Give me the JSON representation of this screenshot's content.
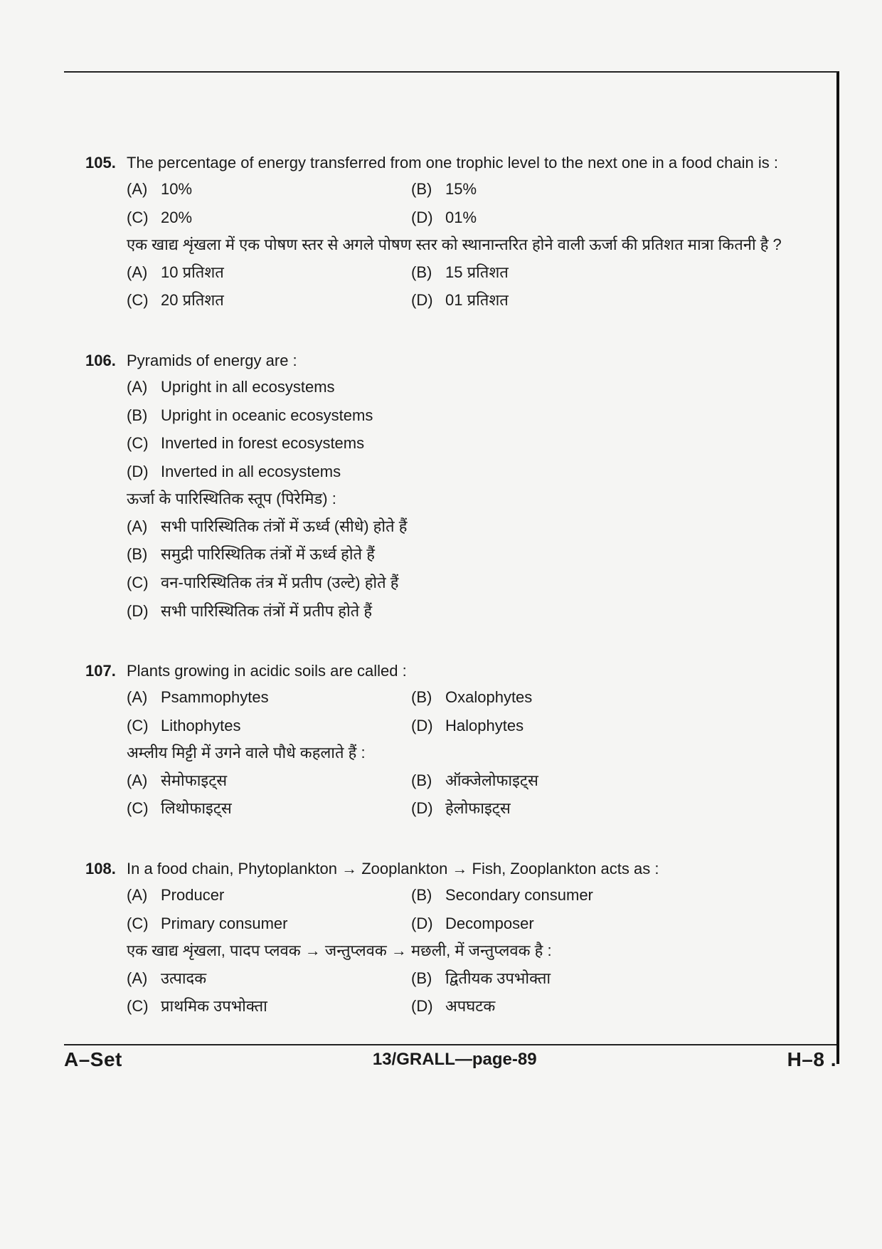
{
  "questions": [
    {
      "num": "105.",
      "text_en": "The percentage of energy transferred from one trophic level to the next one in a food chain is :",
      "opts_en": [
        {
          "l": "(A)",
          "t": "10%"
        },
        {
          "l": "(B)",
          "t": "15%"
        },
        {
          "l": "(C)",
          "t": "20%"
        },
        {
          "l": "(D)",
          "t": "01%"
        }
      ],
      "text_hi": "एक खाद्य शृंखला में एक पोषण स्तर से अगले पोषण स्तर को स्थानान्तरित होने वाली ऊर्जा की प्रतिशत मात्रा कितनी है ?",
      "opts_hi": [
        {
          "l": "(A)",
          "t": "10 प्रतिशत"
        },
        {
          "l": "(B)",
          "t": "15 प्रतिशत"
        },
        {
          "l": "(C)",
          "t": "20 प्रतिशत"
        },
        {
          "l": "(D)",
          "t": "01 प्रतिशत"
        }
      ]
    },
    {
      "num": "106.",
      "text_en": "Pyramids of energy are :",
      "opts_en": [
        {
          "l": "(A)",
          "t": "Upright in all ecosystems"
        },
        {
          "l": "(B)",
          "t": "Upright in oceanic ecosystems"
        },
        {
          "l": "(C)",
          "t": "Inverted in forest ecosystems"
        },
        {
          "l": "(D)",
          "t": "Inverted in all ecosystems"
        }
      ],
      "text_hi": "ऊर्जा के पारिस्थितिक स्तूप (पिरेमिड) :",
      "opts_hi": [
        {
          "l": "(A)",
          "t": "सभी पारिस्थितिक तंत्रों में ऊर्ध्व (सीधे) होते हैं"
        },
        {
          "l": "(B)",
          "t": "समुद्री पारिस्थितिक तंत्रों में ऊर्ध्व होते हैं"
        },
        {
          "l": "(C)",
          "t": "वन-पारिस्थितिक तंत्र में प्रतीप (उल्टे) होते हैं"
        },
        {
          "l": "(D)",
          "t": "सभी पारिस्थितिक तंत्रों में प्रतीप होते हैं"
        }
      ]
    },
    {
      "num": "107.",
      "text_en": "Plants growing in acidic soils are called :",
      "opts_en": [
        {
          "l": "(A)",
          "t": "Psammophytes"
        },
        {
          "l": "(B)",
          "t": "Oxalophytes"
        },
        {
          "l": "(C)",
          "t": "Lithophytes"
        },
        {
          "l": "(D)",
          "t": "Halophytes"
        }
      ],
      "text_hi": "अम्लीय मिट्टी में उगने वाले पौधे कहलाते हैं :",
      "opts_hi": [
        {
          "l": "(A)",
          "t": "सेमोफाइट्स"
        },
        {
          "l": "(B)",
          "t": "ऑक्जेलोफाइट्स"
        },
        {
          "l": "(C)",
          "t": "लिथोफाइट्स"
        },
        {
          "l": "(D)",
          "t": "हेलोफाइट्स"
        }
      ]
    },
    {
      "num": "108.",
      "text_en": "In a food chain, Phytoplankton → Zooplankton → Fish, Zooplankton acts as :",
      "opts_en": [
        {
          "l": "(A)",
          "t": "Producer"
        },
        {
          "l": "(B)",
          "t": "Secondary consumer"
        },
        {
          "l": "(C)",
          "t": "Primary consumer"
        },
        {
          "l": "(D)",
          "t": "Decomposer"
        }
      ],
      "text_hi": "एक खाद्य शृंखला, पादप प्लवक → जन्तुप्लवक → मछली, में जन्तुप्लवक है :",
      "opts_hi": [
        {
          "l": "(A)",
          "t": "उत्पादक"
        },
        {
          "l": "(B)",
          "t": "द्वितीयक उपभोक्ता"
        },
        {
          "l": "(C)",
          "t": "प्राथमिक उपभोक्ता"
        },
        {
          "l": "(D)",
          "t": "अपघटक"
        }
      ]
    }
  ],
  "footer": {
    "left": "A–Set",
    "center": "13/GRALL—page-89",
    "right": "H–8 ."
  }
}
